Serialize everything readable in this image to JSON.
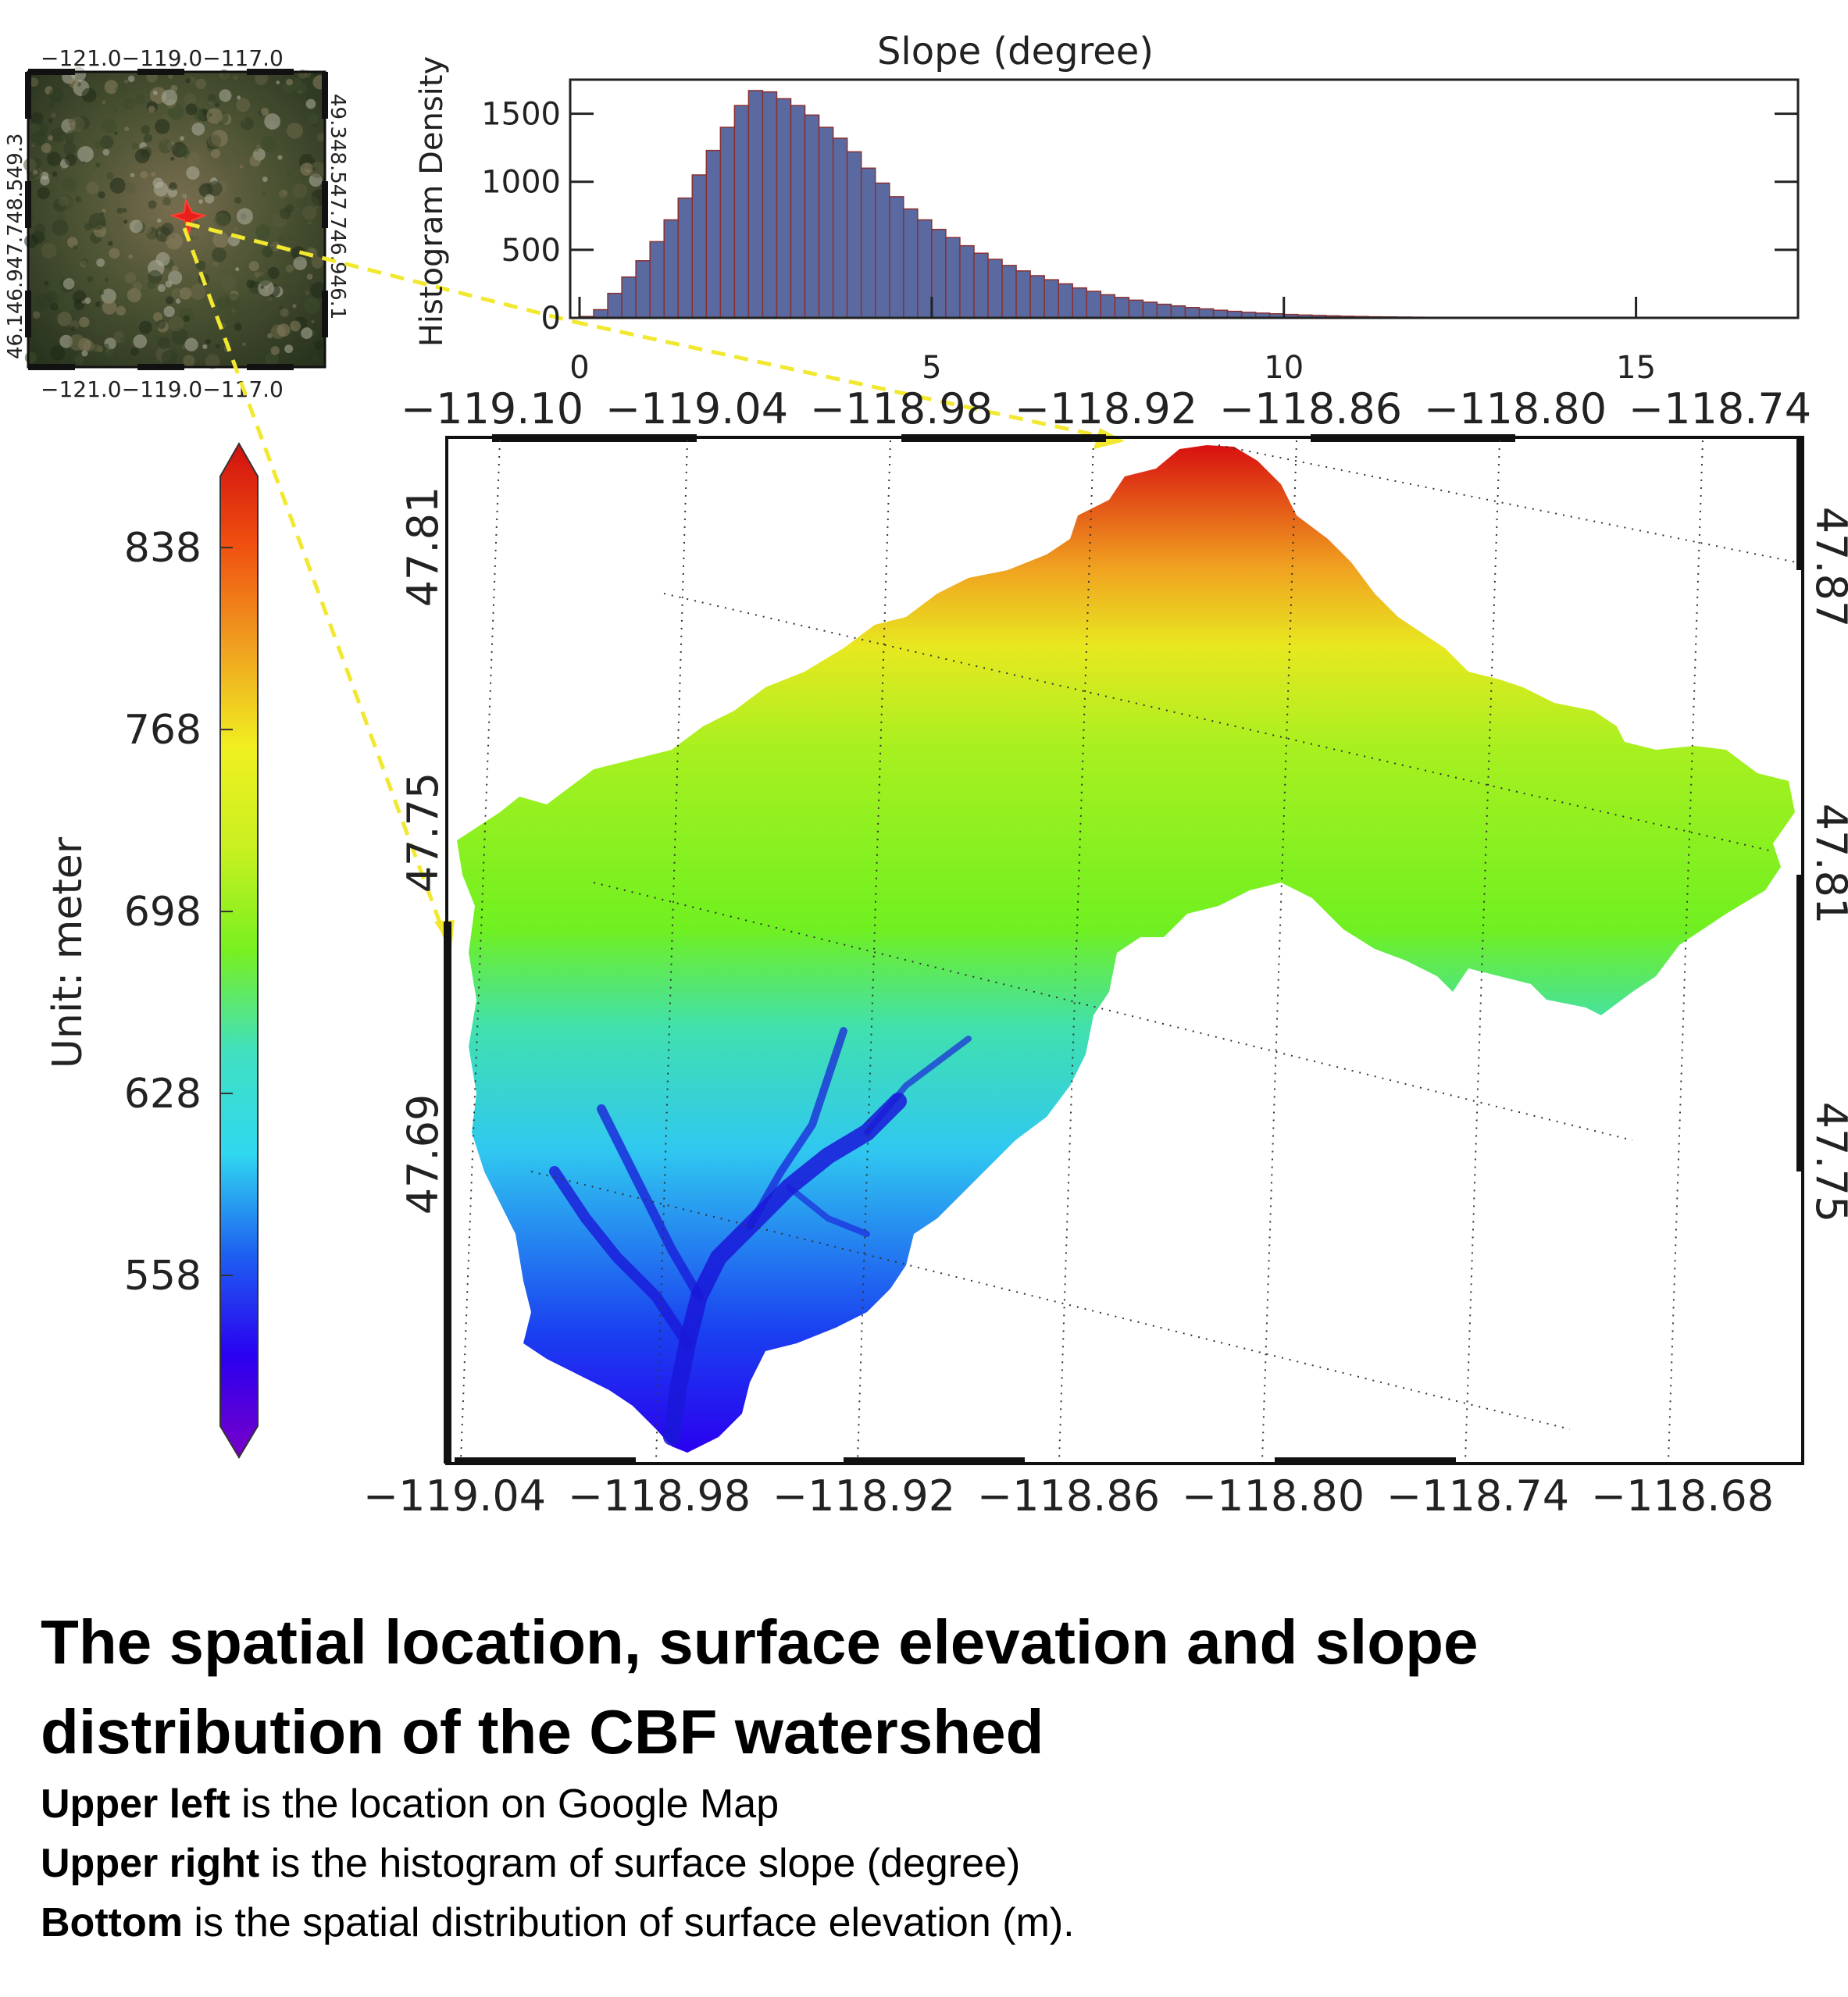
{
  "caption": {
    "title": "The spatial location, surface elevation and slope distribution of the CBF watershed",
    "lines": [
      {
        "bold": "Upper left",
        "rest": " is the location on Google Map"
      },
      {
        "bold": "Upper right",
        "rest": " is the histogram of surface slope (degree)"
      },
      {
        "bold": "Bottom",
        "rest": " is the spatial distribution of surface elevation (m)."
      }
    ]
  },
  "locator_map": {
    "top_ticks": "−121.0−119.0−117.0",
    "bottom_ticks": "−121.0−119.0−117.0",
    "left_ticks": "46.146.947.748.549.3",
    "right_ticks": "49.348.547.746.946.1",
    "marker_color": "#e8201c",
    "callout_color": "#f2e830"
  },
  "chart_data": {
    "type": "bar",
    "title": "Slope (degree)",
    "ylabel": "Histogram Density",
    "xlim": [
      0,
      17.3
    ],
    "ylim": [
      0,
      1750
    ],
    "x_ticks": [
      "0",
      "5",
      "10",
      "15"
    ],
    "y_ticks": [
      "0",
      "500",
      "1000",
      "1500"
    ],
    "bin_width": 0.2,
    "bar_color": "#5a6aa0",
    "bar_edge_color": "#8a3030",
    "values": [
      10,
      60,
      180,
      300,
      420,
      560,
      720,
      880,
      1050,
      1230,
      1400,
      1560,
      1670,
      1660,
      1610,
      1560,
      1490,
      1400,
      1320,
      1220,
      1100,
      990,
      890,
      800,
      720,
      650,
      590,
      530,
      475,
      430,
      385,
      345,
      310,
      280,
      250,
      220,
      195,
      170,
      150,
      130,
      115,
      100,
      88,
      76,
      66,
      56,
      48,
      41,
      35,
      30,
      25,
      21,
      18,
      15,
      12,
      10,
      8,
      7,
      6,
      5,
      4,
      3,
      3,
      2,
      2,
      2,
      1,
      1,
      1,
      1,
      1
    ]
  },
  "colorbar": {
    "label": "Unit: meter",
    "ticks": [
      "838",
      "768",
      "698",
      "628",
      "558"
    ],
    "min": 488,
    "max": 878,
    "tick_values": [
      838,
      768,
      698,
      628,
      558
    ],
    "stops": [
      "#7a00c8",
      "#2a00f0",
      "#1e60f0",
      "#30d8f0",
      "#40e0c0",
      "#78f020",
      "#c8f020",
      "#f0f020",
      "#f0a020",
      "#f05010",
      "#d01010"
    ]
  },
  "elevation_map": {
    "top_ticks": [
      "−119.10",
      "−119.04",
      "−118.98",
      "−118.92",
      "−118.86",
      "−118.80",
      "−118.74"
    ],
    "bottom_ticks": [
      "−119.04",
      "−118.98",
      "−118.92",
      "−118.86",
      "−118.80",
      "−118.74",
      "−118.68"
    ],
    "left_ticks": [
      "47.81",
      "47.75",
      "47.69"
    ],
    "right_ticks": [
      "47.87",
      "47.81",
      "47.75"
    ]
  }
}
